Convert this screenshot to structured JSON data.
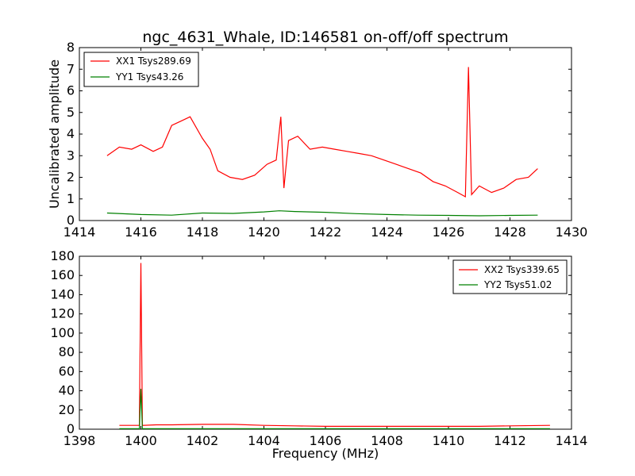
{
  "chart_data": [
    {
      "type": "line",
      "title": "ngc_4631_Whale, ID:146581 on-off/off spectrum",
      "xlabel": "",
      "ylabel": "Uncalibrated amplitude",
      "xlim": [
        1414,
        1430
      ],
      "ylim": [
        0,
        8
      ],
      "xticks": [
        1414,
        1416,
        1418,
        1420,
        1422,
        1424,
        1426,
        1428,
        1430
      ],
      "yticks": [
        0,
        1,
        2,
        3,
        4,
        5,
        6,
        7,
        8
      ],
      "legend_position": "top-left",
      "series": [
        {
          "name": "XX1 Tsys289.69",
          "color": "#ff0000",
          "x": [
            1414.9,
            1415.3,
            1415.7,
            1416.0,
            1416.4,
            1416.7,
            1417.0,
            1417.3,
            1417.6,
            1418.0,
            1418.25,
            1418.5,
            1418.9,
            1419.3,
            1419.7,
            1420.1,
            1420.4,
            1420.55,
            1420.65,
            1420.8,
            1421.1,
            1421.5,
            1421.9,
            1422.3,
            1422.7,
            1423.1,
            1423.5,
            1423.9,
            1424.3,
            1424.7,
            1425.1,
            1425.5,
            1425.9,
            1426.3,
            1426.55,
            1426.65,
            1426.75,
            1427.0,
            1427.4,
            1427.8,
            1428.2,
            1428.6,
            1428.9
          ],
          "y": [
            3.0,
            3.4,
            3.3,
            3.5,
            3.2,
            3.4,
            4.4,
            4.6,
            4.8,
            3.8,
            3.3,
            2.3,
            2.0,
            1.9,
            2.1,
            2.6,
            2.8,
            4.8,
            1.5,
            3.7,
            3.9,
            3.3,
            3.4,
            3.3,
            3.2,
            3.1,
            3.0,
            2.8,
            2.6,
            2.4,
            2.2,
            1.8,
            1.6,
            1.3,
            1.1,
            7.1,
            1.2,
            1.6,
            1.3,
            1.5,
            1.9,
            2.0,
            2.4
          ]
        },
        {
          "name": "YY1 Tsys43.26",
          "color": "#008000",
          "x": [
            1414.9,
            1416.0,
            1417.0,
            1418.0,
            1419.0,
            1420.0,
            1420.5,
            1421.0,
            1422.0,
            1423.0,
            1424.0,
            1425.0,
            1426.0,
            1427.0,
            1428.0,
            1428.9
          ],
          "y": [
            0.35,
            0.28,
            0.25,
            0.35,
            0.33,
            0.4,
            0.45,
            0.42,
            0.38,
            0.32,
            0.28,
            0.25,
            0.24,
            0.22,
            0.24,
            0.25
          ]
        }
      ]
    },
    {
      "type": "line",
      "title": "",
      "xlabel": "Frequency (MHz)",
      "ylabel": "",
      "xlim": [
        1398,
        1414
      ],
      "ylim": [
        0,
        180
      ],
      "xticks": [
        1398,
        1400,
        1402,
        1404,
        1406,
        1408,
        1410,
        1412,
        1414
      ],
      "yticks": [
        0,
        20,
        40,
        60,
        80,
        100,
        120,
        140,
        160,
        180
      ],
      "legend_position": "top-right",
      "series": [
        {
          "name": "XX2 Tsys339.65",
          "color": "#ff0000",
          "x": [
            1399.3,
            1399.8,
            1399.95,
            1400.0,
            1400.05,
            1400.5,
            1401.0,
            1402.0,
            1403.0,
            1404.0,
            1405.0,
            1406.0,
            1407.0,
            1408.0,
            1409.0,
            1410.0,
            1411.0,
            1412.0,
            1413.3
          ],
          "y": [
            4.0,
            4.0,
            4.0,
            173,
            4.0,
            4.5,
            4.5,
            5.0,
            5.0,
            4.0,
            3.5,
            3.0,
            3.0,
            3.0,
            3.0,
            3.0,
            3.0,
            3.5,
            4.0
          ]
        },
        {
          "name": "YY2 Tsys51.02",
          "color": "#008000",
          "x": [
            1399.3,
            1399.95,
            1400.0,
            1400.05,
            1413.3
          ],
          "y": [
            0.5,
            0.5,
            42,
            0.5,
            0.5
          ]
        }
      ]
    }
  ]
}
